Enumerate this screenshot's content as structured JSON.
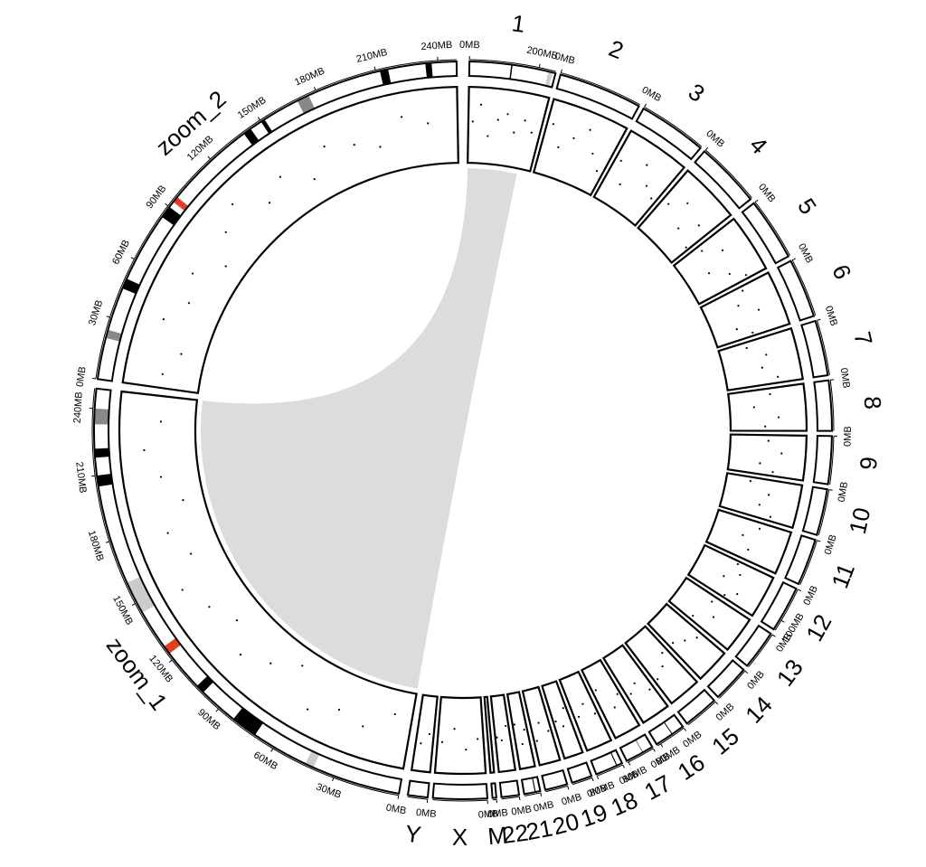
{
  "chart_data": {
    "type": "circos",
    "point_color": "#000000",
    "sectors": [
      {
        "name": "1",
        "xlim": [
          0,
          248.96
        ],
        "xticks": [
          {
            "value": 0,
            "label": "0MB"
          },
          {
            "value": 200,
            "label": "200MB"
          }
        ],
        "bands": [
          {
            "start": 120,
            "end": 124,
            "color": "#000000"
          },
          {
            "start": 228,
            "end": 240,
            "color": "#cccccc"
          }
        ],
        "points": {
          "x": [
            15,
            40,
            70,
            100,
            130,
            160,
            190,
            220
          ],
          "y": [
            0.55,
            0.8,
            0.35,
            0.6,
            0.7,
            0.45,
            0.65,
            0.5
          ]
        }
      },
      {
        "name": "2",
        "xlim": [
          0,
          242.19
        ],
        "xticks": [
          {
            "value": 0,
            "label": "0MB"
          }
        ],
        "bands": [],
        "points": {
          "x": [
            20,
            60,
            100,
            140,
            180,
            220
          ],
          "y": [
            0.7,
            0.4,
            0.6,
            0.8,
            0.5,
            0.3
          ]
        }
      },
      {
        "name": "3",
        "xlim": [
          0,
          198.3
        ],
        "xticks": [
          {
            "value": 0,
            "label": "0MB"
          }
        ],
        "bands": [],
        "points": {
          "x": [
            20,
            60,
            100,
            140,
            180
          ],
          "y": [
            0.6,
            0.3,
            0.75,
            0.5,
            0.4
          ]
        }
      },
      {
        "name": "4",
        "xlim": [
          0,
          190.21
        ],
        "xticks": [
          {
            "value": 0,
            "label": "0MB"
          }
        ],
        "bands": [],
        "points": {
          "x": [
            25,
            70,
            110,
            150,
            180
          ],
          "y": [
            0.5,
            0.7,
            0.35,
            0.6,
            0.25
          ]
        }
      },
      {
        "name": "5",
        "xlim": [
          0,
          181.54
        ],
        "xticks": [
          {
            "value": 0,
            "label": "0MB"
          }
        ],
        "bands": [],
        "points": {
          "x": [
            20,
            60,
            100,
            140,
            170
          ],
          "y": [
            0.4,
            0.65,
            0.3,
            0.55,
            0.75
          ]
        }
      },
      {
        "name": "6",
        "xlim": [
          0,
          170.81
        ],
        "xticks": [
          {
            "value": 0,
            "label": "0MB"
          }
        ],
        "bands": [],
        "points": {
          "x": [
            15,
            55,
            95,
            130,
            160
          ],
          "y": [
            0.6,
            0.45,
            0.7,
            0.3,
            0.5
          ]
        }
      },
      {
        "name": "7",
        "xlim": [
          0,
          159.35
        ],
        "xticks": [
          {
            "value": 0,
            "label": "0MB"
          }
        ],
        "bands": [],
        "points": {
          "x": [
            20,
            60,
            100,
            140
          ],
          "y": [
            0.35,
            0.6,
            0.5,
            0.7
          ]
        }
      },
      {
        "name": "8",
        "xlim": [
          0,
          145.14
        ],
        "xticks": [
          {
            "value": 0,
            "label": "0MB"
          }
        ],
        "bands": [],
        "points": {
          "x": [
            20,
            60,
            100,
            130
          ],
          "y": [
            0.55,
            0.3,
            0.65,
            0.45
          ]
        }
      },
      {
        "name": "9",
        "xlim": [
          0,
          138.39
        ],
        "xticks": [
          {
            "value": 0,
            "label": "0MB"
          }
        ],
        "bands": [],
        "points": {
          "x": [
            20,
            60,
            100,
            125
          ],
          "y": [
            0.5,
            0.7,
            0.4,
            0.6
          ]
        }
      },
      {
        "name": "10",
        "xlim": [
          0,
          133.8
        ],
        "xticks": [
          {
            "value": 0,
            "label": "0MB"
          }
        ],
        "bands": [],
        "points": {
          "x": [
            15,
            50,
            90,
            120
          ],
          "y": [
            0.3,
            0.6,
            0.5,
            0.7
          ]
        }
      },
      {
        "name": "11",
        "xlim": [
          0,
          135.09
        ],
        "xticks": [
          {
            "value": 0,
            "label": "0MB"
          }
        ],
        "bands": [],
        "points": {
          "x": [
            20,
            60,
            100
          ],
          "y": [
            0.6,
            0.4,
            0.55
          ]
        }
      },
      {
        "name": "12",
        "xlim": [
          0,
          133.28
        ],
        "xticks": [
          {
            "value": 0,
            "label": "0MB"
          },
          {
            "value": 100,
            "label": "100MB"
          }
        ],
        "bands": [],
        "points": {
          "x": [
            10,
            40,
            70,
            100,
            125
          ],
          "y": [
            0.5,
            0.6,
            0.4,
            0.7,
            0.55
          ]
        }
      },
      {
        "name": "13",
        "xlim": [
          0,
          114.36
        ],
        "xticks": [
          {
            "value": 0,
            "label": "0MB"
          }
        ],
        "bands": [],
        "points": {
          "x": [
            20,
            60,
            100
          ],
          "y": [
            0.45,
            0.6,
            0.35
          ]
        }
      },
      {
        "name": "14",
        "xlim": [
          0,
          107.04
        ],
        "xticks": [
          {
            "value": 0,
            "label": "0MB"
          }
        ],
        "bands": [],
        "points": {
          "x": [
            20,
            55,
            90
          ],
          "y": [
            0.6,
            0.5,
            0.4
          ]
        }
      },
      {
        "name": "15",
        "xlim": [
          0,
          101.99
        ],
        "xticks": [
          {
            "value": 0,
            "label": "0MB"
          }
        ],
        "bands": [],
        "points": {
          "x": [
            20,
            50,
            90
          ],
          "y": [
            0.4,
            0.55,
            0.65
          ]
        }
      },
      {
        "name": "16",
        "xlim": [
          0,
          90.34
        ],
        "xticks": [
          {
            "value": 0,
            "label": "0MB"
          },
          {
            "value": 80,
            "label": "80MB"
          }
        ],
        "bands": [
          {
            "start": 36,
            "end": 38.5,
            "color": "#000000"
          }
        ],
        "points": {
          "x": [
            15,
            45,
            75
          ],
          "y": [
            0.7,
            0.5,
            0.6
          ]
        }
      },
      {
        "name": "17",
        "xlim": [
          0,
          83.26
        ],
        "xticks": [
          {
            "value": 0,
            "label": "0MB"
          },
          {
            "value": 80,
            "label": "80MB"
          }
        ],
        "bands": [
          {
            "start": 30,
            "end": 33,
            "color": "#888888"
          }
        ],
        "points": {
          "x": [
            10,
            40,
            70
          ],
          "y": [
            0.5,
            0.65,
            0.3
          ]
        }
      },
      {
        "name": "18",
        "xlim": [
          0,
          80.37
        ],
        "xticks": [
          {
            "value": 0,
            "label": "0MB"
          },
          {
            "value": 80,
            "label": "80MB"
          }
        ],
        "bands": [
          {
            "start": 15,
            "end": 18,
            "color": "#000000"
          }
        ],
        "points": {
          "x": [
            10,
            35,
            65
          ],
          "y": [
            0.6,
            0.4,
            0.55
          ]
        }
      },
      {
        "name": "19",
        "xlim": [
          0,
          58.62
        ],
        "xticks": [
          {
            "value": 0,
            "label": "0MB"
          }
        ],
        "bands": [],
        "points": {
          "x": [
            10,
            30,
            50
          ],
          "y": [
            0.35,
            0.6,
            0.5
          ]
        }
      },
      {
        "name": "20",
        "xlim": [
          0,
          64.44
        ],
        "xticks": [
          {
            "value": 0,
            "label": "0MB"
          }
        ],
        "bands": [],
        "points": {
          "x": [
            10,
            35,
            55
          ],
          "y": [
            0.6,
            0.45,
            0.7
          ]
        }
      },
      {
        "name": "21",
        "xlim": [
          0,
          46.71
        ],
        "xticks": [
          {
            "value": 0,
            "label": "0MB"
          }
        ],
        "bands": [
          {
            "start": 13,
            "end": 16,
            "color": "#000000"
          }
        ],
        "points": {
          "x": [
            10,
            25,
            40
          ],
          "y": [
            0.5,
            0.7,
            0.4
          ]
        }
      },
      {
        "name": "22",
        "xlim": [
          0,
          50.82
        ],
        "xticks": [
          {
            "value": 0,
            "label": "0MB"
          }
        ],
        "bands": [],
        "points": {
          "x": [
            10,
            30,
            45
          ],
          "y": [
            0.4,
            0.6,
            0.55
          ]
        }
      },
      {
        "name": "M",
        "xlim": [
          0,
          0.0166
        ],
        "xticks": [
          {
            "value": 0,
            "label": "0MB"
          }
        ],
        "bands": [],
        "points": {
          "x": [],
          "y": []
        }
      },
      {
        "name": "X",
        "xlim": [
          0,
          156.04
        ],
        "xticks": [
          {
            "value": 0,
            "label": "0MB"
          }
        ],
        "bands": [],
        "points": {
          "x": [
            20,
            60,
            100,
            140
          ],
          "y": [
            0.55,
            0.7,
            0.4,
            0.6
          ]
        }
      },
      {
        "name": "Y",
        "xlim": [
          0,
          57.23
        ],
        "xticks": [
          {
            "value": 0,
            "label": "0MB"
          }
        ],
        "bands": [],
        "points": {
          "x": [
            15,
            40
          ],
          "y": [
            0.5,
            0.65
          ]
        }
      },
      {
        "name": "zoom_1",
        "xlim": [
          0,
          248.96
        ],
        "xticks": [
          {
            "value": 0,
            "label": "0MB"
          },
          {
            "value": 30,
            "label": "30MB"
          },
          {
            "value": 60,
            "label": "60MB"
          },
          {
            "value": 90,
            "label": "90MB"
          },
          {
            "value": 120,
            "label": "120MB"
          },
          {
            "value": 150,
            "label": "150MB"
          },
          {
            "value": 180,
            "label": "180MB"
          },
          {
            "value": 210,
            "label": "210MB"
          },
          {
            "value": 240,
            "label": "240MB"
          }
        ],
        "bands": [
          {
            "start": 40,
            "end": 44,
            "color": "#cccccc"
          },
          {
            "start": 70,
            "end": 82,
            "color": "#000000"
          },
          {
            "start": 100,
            "end": 104,
            "color": "#000000"
          },
          {
            "start": 123,
            "end": 127,
            "color": "#e04020"
          },
          {
            "start": 145,
            "end": 160,
            "color": "#cccccc"
          },
          {
            "start": 205,
            "end": 210,
            "color": "#000000"
          },
          {
            "start": 218,
            "end": 222,
            "color": "#000000"
          },
          {
            "start": 233,
            "end": 240,
            "color": "#888888"
          }
        ],
        "points": {
          "x": [
            10,
            25,
            40,
            55,
            70,
            85,
            100,
            115,
            130,
            145,
            160,
            175,
            190,
            205,
            220,
            235
          ],
          "y": [
            0.3,
            0.6,
            0.5,
            0.7,
            0.2,
            0.45,
            0.65,
            0.35,
            0.55,
            0.75,
            0.4,
            0.6,
            0.25,
            0.5,
            0.7,
            0.45
          ]
        }
      },
      {
        "name": "zoom_2",
        "xlim": [
          0,
          248.96
        ],
        "xticks": [
          {
            "value": 0,
            "label": "0MB"
          },
          {
            "value": 30,
            "label": "30MB"
          },
          {
            "value": 60,
            "label": "60MB"
          },
          {
            "value": 90,
            "label": "90MB"
          },
          {
            "value": 120,
            "label": "120MB"
          },
          {
            "value": 150,
            "label": "150MB"
          },
          {
            "value": 180,
            "label": "180MB"
          },
          {
            "value": 210,
            "label": "210MB"
          },
          {
            "value": 240,
            "label": "240MB"
          }
        ],
        "bands": [
          {
            "start": 20,
            "end": 24,
            "color": "#888888"
          },
          {
            "start": 45,
            "end": 50,
            "color": "#000000"
          },
          {
            "start": 84,
            "end": 90,
            "color": "#000000"
          },
          {
            "start": 93,
            "end": 96,
            "color": "#e04020"
          },
          {
            "start": 140,
            "end": 144,
            "color": "#000000"
          },
          {
            "start": 150,
            "end": 152,
            "color": "#000000"
          },
          {
            "start": 170,
            "end": 176,
            "color": "#888888"
          },
          {
            "start": 212,
            "end": 216,
            "color": "#000000"
          },
          {
            "start": 234,
            "end": 237,
            "color": "#000000"
          }
        ],
        "points": {
          "x": [
            8,
            22,
            38,
            52,
            68,
            82,
            98,
            112,
            128,
            142,
            158,
            172,
            188,
            202,
            218,
            232
          ],
          "y": [
            0.5,
            0.3,
            0.7,
            0.45,
            0.6,
            0.25,
            0.55,
            0.75,
            0.4,
            0.6,
            0.3,
            0.65,
            0.5,
            0.35,
            0.7,
            0.55
          ]
        }
      }
    ],
    "links": [
      {
        "from": {
          "sector": "1",
          "start": 0,
          "end": 200
        },
        "to": {
          "sector": "zoom_1",
          "start": 0,
          "end": 248.96
        },
        "color": "#dcdcdc"
      }
    ]
  }
}
